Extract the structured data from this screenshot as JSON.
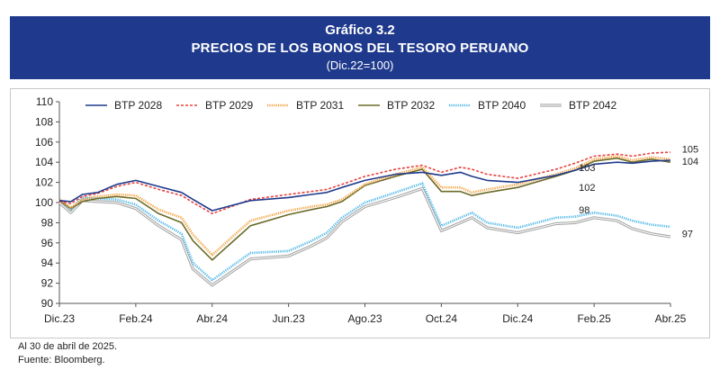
{
  "header": {
    "number": "Gráfico 3.2",
    "title": "PRECIOS DE LOS BONOS DEL TESORO PERUANO",
    "subtitle": "(Dic.22=100)"
  },
  "notes": {
    "date": "Al 30 de abril de 2025.",
    "source": "Fuente: Bloomberg."
  },
  "chart_data": {
    "type": "line",
    "x_ticks": [
      "Dic.23",
      "Feb.24",
      "Abr.24",
      "Jun.23",
      "Ago.23",
      "Oct.24",
      "Dic.24",
      "Feb.25",
      "Abr.25"
    ],
    "ylim": [
      90,
      110
    ],
    "y_ticks": [
      90,
      92,
      94,
      96,
      98,
      100,
      102,
      104,
      106,
      108,
      110
    ],
    "grid": false,
    "legend": "top",
    "series": [
      {
        "name": "BTP 2028",
        "color": "#1f3a8c",
        "style": "solid",
        "x": [
          0.0,
          0.3,
          0.6,
          1.0,
          1.5,
          2.0,
          2.6,
          3.2,
          3.5,
          4.0,
          5.0,
          6.0,
          6.6,
          7.0,
          7.4,
          8.0,
          8.8,
          9.5,
          10.0,
          10.5,
          10.8,
          11.2,
          12.0,
          13.0,
          13.5,
          14.0,
          14.6,
          15.0,
          15.5,
          16.0
        ],
        "values": [
          100.2,
          100.1,
          100.8,
          101.0,
          101.8,
          102.2,
          101.6,
          101.0,
          100.3,
          99.2,
          100.2,
          100.5,
          100.8,
          101.0,
          101.5,
          102.2,
          102.8,
          103.0,
          102.7,
          103.0,
          102.6,
          102.2,
          102.0,
          102.7,
          103.2,
          103.8,
          104.0,
          103.9,
          104.1,
          104.2
        ]
      },
      {
        "name": "BTP 2029",
        "color": "#e8423f",
        "style": "dash",
        "x": [
          0.0,
          0.3,
          0.6,
          1.0,
          1.5,
          2.0,
          2.6,
          3.2,
          3.5,
          4.0,
          5.0,
          6.0,
          6.6,
          7.0,
          7.4,
          8.0,
          8.8,
          9.5,
          10.0,
          10.5,
          10.8,
          11.2,
          12.0,
          13.0,
          13.5,
          14.0,
          14.6,
          15.0,
          15.5,
          16.0
        ],
        "values": [
          100.1,
          99.9,
          100.6,
          100.9,
          101.6,
          102.0,
          101.3,
          100.7,
          100.0,
          98.9,
          100.3,
          100.8,
          101.1,
          101.3,
          101.8,
          102.6,
          103.3,
          103.7,
          103.0,
          103.5,
          103.3,
          102.8,
          102.4,
          103.3,
          103.9,
          104.6,
          104.8,
          104.6,
          104.9,
          105.0
        ]
      },
      {
        "name": "BTP 2031",
        "color": "#f2a444",
        "style": "dot",
        "x": [
          0.0,
          0.3,
          0.6,
          1.0,
          1.5,
          2.0,
          2.6,
          3.2,
          3.5,
          4.0,
          5.0,
          6.0,
          6.6,
          7.0,
          7.4,
          8.0,
          8.8,
          9.5,
          10.0,
          10.5,
          10.8,
          11.2,
          12.0,
          13.0,
          13.5,
          14.0,
          14.6,
          15.0,
          15.5,
          16.0
        ],
        "values": [
          100.3,
          99.5,
          100.3,
          100.6,
          100.8,
          100.7,
          99.3,
          98.5,
          96.8,
          94.8,
          98.2,
          99.2,
          99.6,
          99.8,
          100.3,
          101.8,
          102.8,
          103.5,
          101.5,
          101.5,
          101.0,
          101.3,
          101.8,
          102.8,
          103.4,
          104.3,
          104.6,
          104.2,
          104.5,
          104.3
        ]
      },
      {
        "name": "BTP 2032",
        "color": "#6b6b2a",
        "style": "solid",
        "x": [
          0.0,
          0.3,
          0.6,
          1.0,
          1.5,
          2.0,
          2.6,
          3.2,
          3.5,
          4.0,
          5.0,
          6.0,
          6.6,
          7.0,
          7.4,
          8.0,
          8.8,
          9.5,
          10.0,
          10.5,
          10.8,
          11.2,
          12.0,
          13.0,
          13.5,
          14.0,
          14.6,
          15.0,
          15.5,
          16.0
        ],
        "values": [
          100.2,
          99.4,
          100.1,
          100.4,
          100.6,
          100.4,
          98.9,
          98.0,
          96.2,
          94.3,
          97.7,
          98.8,
          99.3,
          99.6,
          100.1,
          101.7,
          102.6,
          103.3,
          101.1,
          101.1,
          100.7,
          101.0,
          101.5,
          102.6,
          103.2,
          104.1,
          104.4,
          104.0,
          104.3,
          104.0
        ]
      },
      {
        "name": "BTP 2040",
        "color": "#4fb8e8",
        "style": "dot",
        "x": [
          0.0,
          0.3,
          0.6,
          1.0,
          1.5,
          2.0,
          2.6,
          3.2,
          3.5,
          4.0,
          5.0,
          6.0,
          6.6,
          7.0,
          7.4,
          8.0,
          8.8,
          9.5,
          10.0,
          10.5,
          10.8,
          11.2,
          12.0,
          13.0,
          13.5,
          14.0,
          14.6,
          15.0,
          15.5,
          16.0
        ],
        "values": [
          100.3,
          99.3,
          100.5,
          100.4,
          100.3,
          99.8,
          98.2,
          96.9,
          94.0,
          92.3,
          95.0,
          95.2,
          96.2,
          97.0,
          98.5,
          100.0,
          101.0,
          101.9,
          97.7,
          98.5,
          99.0,
          98.0,
          97.5,
          98.5,
          98.6,
          99.0,
          98.7,
          98.2,
          97.8,
          97.6
        ]
      },
      {
        "name": "BTP 2042",
        "color": "#a8a8a8",
        "style": "double",
        "x": [
          0.0,
          0.3,
          0.6,
          1.0,
          1.5,
          2.0,
          2.6,
          3.2,
          3.5,
          4.0,
          5.0,
          6.0,
          6.6,
          7.0,
          7.4,
          8.0,
          8.8,
          9.5,
          10.0,
          10.5,
          10.8,
          11.2,
          12.0,
          13.0,
          13.5,
          14.0,
          14.6,
          15.0,
          15.5,
          16.0
        ],
        "values": [
          100.0,
          99.0,
          100.2,
          100.1,
          100.0,
          99.4,
          97.7,
          96.3,
          93.4,
          91.8,
          94.4,
          94.7,
          95.7,
          96.5,
          98.1,
          99.6,
          100.5,
          101.4,
          97.2,
          98.0,
          98.5,
          97.5,
          97.0,
          97.9,
          98.0,
          98.5,
          98.2,
          97.4,
          96.9,
          96.6
        ]
      }
    ],
    "annotations": [
      {
        "text": "103",
        "x": 13.6,
        "y": 103.5
      },
      {
        "text": "102",
        "x": 13.6,
        "y": 101.5
      },
      {
        "text": "98",
        "x": 13.6,
        "y": 99.3
      },
      {
        "text": "105",
        "x": 16.3,
        "y": 105.3
      },
      {
        "text": "104",
        "x": 16.3,
        "y": 104.1
      },
      {
        "text": "97",
        "x": 16.3,
        "y": 96.9
      }
    ]
  }
}
